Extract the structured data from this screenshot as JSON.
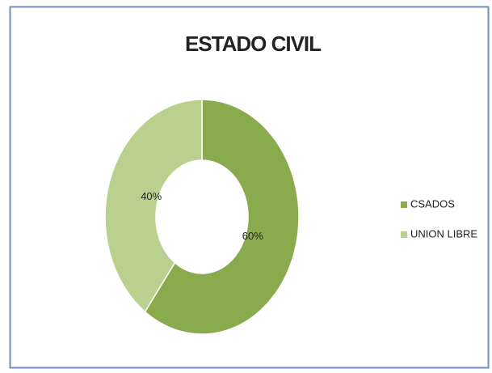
{
  "chart_data": {
    "type": "doughnut",
    "title": "ESTADO CIVIL",
    "categories": [
      "CSADOS",
      "UNION LIBRE"
    ],
    "values": [
      60,
      40
    ],
    "value_labels": [
      "60%",
      "40%"
    ],
    "colors": [
      "#8aaa4e",
      "#b9d08f"
    ],
    "legend": "right"
  }
}
